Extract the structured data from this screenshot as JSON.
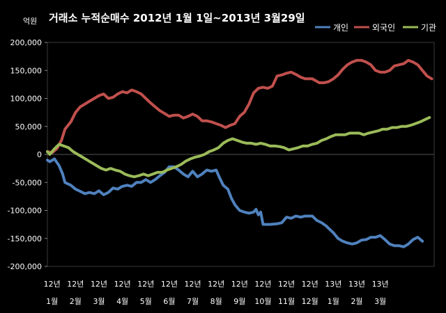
{
  "chart_data": {
    "type": "line",
    "title": "거래소 누적순매수 2012년 1월 1일~2013년 3월29일",
    "ylabel": "억원",
    "xlabel": "",
    "ylim": [
      -200000,
      200000
    ],
    "yticks": [
      "200,000",
      "150,000",
      "100,000",
      "50,000",
      "0",
      "-50,000",
      "-100,000",
      "-150,000",
      "-200,000"
    ],
    "ytick_values": [
      200000,
      150000,
      100000,
      50000,
      0,
      -50000,
      -100000,
      -150000,
      -200000
    ],
    "x_categories": [
      {
        "year": "12년",
        "month": "1월"
      },
      {
        "year": "12년",
        "month": "2월"
      },
      {
        "year": "12년",
        "month": "3월"
      },
      {
        "year": "12년",
        "month": "4월"
      },
      {
        "year": "12년",
        "month": "5월"
      },
      {
        "year": "12년",
        "month": "6월"
      },
      {
        "year": "12년",
        "month": "7월"
      },
      {
        "year": "12년",
        "month": "8월"
      },
      {
        "year": "12년",
        "month": "9월"
      },
      {
        "year": "12년",
        "month": "10월"
      },
      {
        "year": "12년",
        "month": "11월"
      },
      {
        "year": "12년",
        "month": "12월"
      },
      {
        "year": "13년",
        "month": "1월"
      },
      {
        "year": "13년",
        "month": "2월"
      },
      {
        "year": "13년",
        "month": "3월"
      }
    ],
    "x_index_range": [
      0,
      15
    ],
    "grid": false,
    "legend_position": "top-right",
    "series": [
      {
        "name": "개인",
        "color": "#4f81bd",
        "points": [
          [
            0,
            -10000
          ],
          [
            0.1,
            -13000
          ],
          [
            0.3,
            -8000
          ],
          [
            0.5,
            -20000
          ],
          [
            0.65,
            -35000
          ],
          [
            0.75,
            -50000
          ],
          [
            1.0,
            -55000
          ],
          [
            1.2,
            -62000
          ],
          [
            1.4,
            -66000
          ],
          [
            1.6,
            -70000
          ],
          [
            1.8,
            -68000
          ],
          [
            2.0,
            -70000
          ],
          [
            2.2,
            -65000
          ],
          [
            2.4,
            -72000
          ],
          [
            2.6,
            -68000
          ],
          [
            2.8,
            -60000
          ],
          [
            3.0,
            -62000
          ],
          [
            3.2,
            -57000
          ],
          [
            3.4,
            -55000
          ],
          [
            3.6,
            -57000
          ],
          [
            3.8,
            -50000
          ],
          [
            4.0,
            -50000
          ],
          [
            4.2,
            -45000
          ],
          [
            4.4,
            -50000
          ],
          [
            4.6,
            -45000
          ],
          [
            4.8,
            -38000
          ],
          [
            5.0,
            -32000
          ],
          [
            5.2,
            -22000
          ],
          [
            5.4,
            -22000
          ],
          [
            5.6,
            -28000
          ],
          [
            5.8,
            -35000
          ],
          [
            6.0,
            -40000
          ],
          [
            6.2,
            -30000
          ],
          [
            6.4,
            -40000
          ],
          [
            6.6,
            -35000
          ],
          [
            6.8,
            -28000
          ],
          [
            7.0,
            -30000
          ],
          [
            7.2,
            -28000
          ],
          [
            7.35,
            -42000
          ],
          [
            7.5,
            -55000
          ],
          [
            7.7,
            -62000
          ],
          [
            7.85,
            -78000
          ],
          [
            8.0,
            -90000
          ],
          [
            8.2,
            -100000
          ],
          [
            8.4,
            -103000
          ],
          [
            8.6,
            -105000
          ],
          [
            8.8,
            -103000
          ],
          [
            8.9,
            -98000
          ],
          [
            9.0,
            -108000
          ],
          [
            9.1,
            -103000
          ],
          [
            9.2,
            -125000
          ],
          [
            9.5,
            -125000
          ],
          [
            9.8,
            -124000
          ],
          [
            10.0,
            -122000
          ],
          [
            10.2,
            -112000
          ],
          [
            10.4,
            -114000
          ],
          [
            10.6,
            -110000
          ],
          [
            10.8,
            -112000
          ],
          [
            11.0,
            -110000
          ],
          [
            11.3,
            -110000
          ],
          [
            11.5,
            -118000
          ],
          [
            11.7,
            -122000
          ],
          [
            11.9,
            -128000
          ],
          [
            12.0,
            -132000
          ],
          [
            12.2,
            -140000
          ],
          [
            12.4,
            -150000
          ],
          [
            12.6,
            -155000
          ],
          [
            12.8,
            -158000
          ],
          [
            13.0,
            -160000
          ],
          [
            13.2,
            -158000
          ],
          [
            13.4,
            -153000
          ],
          [
            13.6,
            -152000
          ],
          [
            13.8,
            -148000
          ],
          [
            14.0,
            -148000
          ],
          [
            14.2,
            -145000
          ],
          [
            14.4,
            -152000
          ],
          [
            14.6,
            -160000
          ],
          [
            14.8,
            -163000
          ],
          [
            15.0,
            -163000
          ],
          [
            15.2,
            -165000
          ],
          [
            15.4,
            -160000
          ],
          [
            15.6,
            -152000
          ],
          [
            15.8,
            -148000
          ],
          [
            16.0,
            -155000
          ]
        ]
      },
      {
        "name": "외국인",
        "color": "#c0504d",
        "points": [
          [
            0,
            5000
          ],
          [
            0.2,
            3000
          ],
          [
            0.4,
            10000
          ],
          [
            0.6,
            25000
          ],
          [
            0.75,
            45000
          ],
          [
            1.0,
            58000
          ],
          [
            1.2,
            75000
          ],
          [
            1.4,
            85000
          ],
          [
            1.6,
            90000
          ],
          [
            1.8,
            95000
          ],
          [
            2.0,
            100000
          ],
          [
            2.2,
            105000
          ],
          [
            2.4,
            108000
          ],
          [
            2.6,
            100000
          ],
          [
            2.8,
            102000
          ],
          [
            3.0,
            108000
          ],
          [
            3.2,
            112000
          ],
          [
            3.4,
            110000
          ],
          [
            3.6,
            115000
          ],
          [
            3.8,
            112000
          ],
          [
            4.0,
            108000
          ],
          [
            4.2,
            100000
          ],
          [
            4.4,
            92000
          ],
          [
            4.6,
            85000
          ],
          [
            4.8,
            78000
          ],
          [
            5.0,
            73000
          ],
          [
            5.2,
            68000
          ],
          [
            5.4,
            70000
          ],
          [
            5.6,
            70000
          ],
          [
            5.8,
            65000
          ],
          [
            6.0,
            68000
          ],
          [
            6.2,
            72000
          ],
          [
            6.4,
            68000
          ],
          [
            6.6,
            60000
          ],
          [
            6.8,
            60000
          ],
          [
            7.0,
            58000
          ],
          [
            7.2,
            55000
          ],
          [
            7.4,
            52000
          ],
          [
            7.6,
            48000
          ],
          [
            7.8,
            52000
          ],
          [
            8.0,
            55000
          ],
          [
            8.2,
            68000
          ],
          [
            8.4,
            75000
          ],
          [
            8.6,
            90000
          ],
          [
            8.8,
            110000
          ],
          [
            9.0,
            118000
          ],
          [
            9.2,
            120000
          ],
          [
            9.4,
            118000
          ],
          [
            9.6,
            122000
          ],
          [
            9.8,
            140000
          ],
          [
            10.0,
            142000
          ],
          [
            10.2,
            145000
          ],
          [
            10.4,
            147000
          ],
          [
            10.6,
            143000
          ],
          [
            10.8,
            138000
          ],
          [
            11.0,
            135000
          ],
          [
            11.3,
            135000
          ],
          [
            11.6,
            128000
          ],
          [
            11.8,
            128000
          ],
          [
            12.0,
            130000
          ],
          [
            12.2,
            135000
          ],
          [
            12.4,
            142000
          ],
          [
            12.6,
            152000
          ],
          [
            12.8,
            160000
          ],
          [
            13.0,
            165000
          ],
          [
            13.2,
            168000
          ],
          [
            13.4,
            168000
          ],
          [
            13.6,
            165000
          ],
          [
            13.8,
            160000
          ],
          [
            14.0,
            150000
          ],
          [
            14.2,
            147000
          ],
          [
            14.4,
            147000
          ],
          [
            14.6,
            150000
          ],
          [
            14.8,
            158000
          ],
          [
            15.0,
            160000
          ],
          [
            15.2,
            162000
          ],
          [
            15.4,
            168000
          ],
          [
            15.6,
            165000
          ],
          [
            15.8,
            160000
          ],
          [
            16.0,
            150000
          ],
          [
            16.2,
            140000
          ],
          [
            16.4,
            135000
          ]
        ]
      },
      {
        "name": "기관",
        "color": "#9bbb59",
        "points": [
          [
            0,
            5000
          ],
          [
            0.1,
            0
          ],
          [
            0.3,
            10000
          ],
          [
            0.5,
            18000
          ],
          [
            0.7,
            15000
          ],
          [
            0.9,
            12000
          ],
          [
            1.1,
            5000
          ],
          [
            1.3,
            0
          ],
          [
            1.5,
            -5000
          ],
          [
            1.7,
            -10000
          ],
          [
            1.9,
            -15000
          ],
          [
            2.1,
            -20000
          ],
          [
            2.3,
            -25000
          ],
          [
            2.5,
            -28000
          ],
          [
            2.7,
            -25000
          ],
          [
            2.9,
            -28000
          ],
          [
            3.1,
            -30000
          ],
          [
            3.3,
            -35000
          ],
          [
            3.5,
            -38000
          ],
          [
            3.7,
            -40000
          ],
          [
            3.9,
            -38000
          ],
          [
            4.1,
            -35000
          ],
          [
            4.3,
            -38000
          ],
          [
            4.5,
            -35000
          ],
          [
            4.7,
            -32000
          ],
          [
            4.9,
            -32000
          ],
          [
            5.1,
            -28000
          ],
          [
            5.3,
            -25000
          ],
          [
            5.5,
            -22000
          ],
          [
            5.7,
            -18000
          ],
          [
            5.9,
            -12000
          ],
          [
            6.1,
            -8000
          ],
          [
            6.3,
            -5000
          ],
          [
            6.5,
            -3000
          ],
          [
            6.7,
            0
          ],
          [
            6.9,
            5000
          ],
          [
            7.1,
            8000
          ],
          [
            7.3,
            12000
          ],
          [
            7.5,
            20000
          ],
          [
            7.7,
            25000
          ],
          [
            7.9,
            28000
          ],
          [
            8.1,
            25000
          ],
          [
            8.3,
            22000
          ],
          [
            8.5,
            20000
          ],
          [
            8.7,
            20000
          ],
          [
            8.9,
            18000
          ],
          [
            9.1,
            20000
          ],
          [
            9.3,
            18000
          ],
          [
            9.5,
            15000
          ],
          [
            9.7,
            15000
          ],
          [
            9.9,
            14000
          ],
          [
            10.1,
            12000
          ],
          [
            10.3,
            8000
          ],
          [
            10.5,
            10000
          ],
          [
            10.7,
            12000
          ],
          [
            10.9,
            15000
          ],
          [
            11.1,
            15000
          ],
          [
            11.3,
            18000
          ],
          [
            11.5,
            20000
          ],
          [
            11.7,
            25000
          ],
          [
            11.9,
            28000
          ],
          [
            12.1,
            32000
          ],
          [
            12.3,
            35000
          ],
          [
            12.5,
            35000
          ],
          [
            12.7,
            35000
          ],
          [
            12.9,
            38000
          ],
          [
            13.1,
            38000
          ],
          [
            13.3,
            38000
          ],
          [
            13.5,
            35000
          ],
          [
            13.7,
            38000
          ],
          [
            13.9,
            40000
          ],
          [
            14.1,
            42000
          ],
          [
            14.3,
            45000
          ],
          [
            14.5,
            45000
          ],
          [
            14.7,
            48000
          ],
          [
            14.9,
            48000
          ],
          [
            15.1,
            50000
          ],
          [
            15.3,
            50000
          ],
          [
            15.5,
            52000
          ],
          [
            15.7,
            55000
          ],
          [
            15.9,
            58000
          ],
          [
            16.1,
            62000
          ],
          [
            16.3,
            66000
          ]
        ]
      }
    ]
  }
}
